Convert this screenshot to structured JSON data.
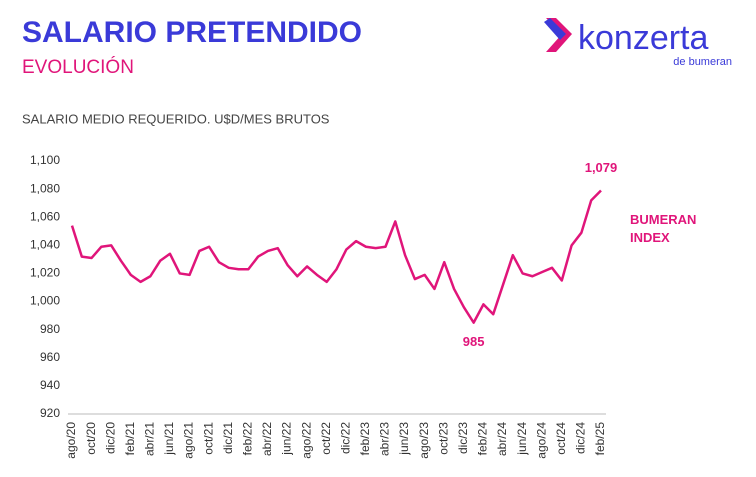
{
  "header": {
    "title": "SALARIO PRETENDIDO",
    "subtitle": "EVOLUCIÓN",
    "logo": {
      "brand": "konzerta",
      "sub": "de bumeran"
    }
  },
  "chart_data": {
    "type": "line",
    "title": "SALARIO MEDIO REQUERIDO. U$D/MES BRUTOS",
    "categories": [
      "ago/20",
      null,
      "oct/20",
      null,
      "dic/20",
      null,
      "feb/21",
      null,
      "abr/21",
      null,
      "jun/21",
      null,
      "ago/21",
      null,
      "oct/21",
      null,
      "dic/21",
      null,
      "feb/22",
      null,
      "abr/22",
      null,
      "jun/22",
      null,
      "ago/22",
      null,
      "oct/22",
      null,
      "dic/22",
      null,
      "feb/23",
      null,
      "abr/23",
      null,
      "jun/23",
      null,
      "ago/23",
      null,
      "oct/23",
      null,
      "dic/23",
      null,
      "feb/24",
      null,
      "abr/24",
      null,
      "jun/24",
      null,
      "ago/24",
      null,
      "oct/24",
      null,
      "dic/24",
      null,
      "feb/25"
    ],
    "series": [
      {
        "name": "BUMERAN INDEX",
        "color": "#e0157a",
        "values": [
          1054,
          1032,
          1031,
          1039,
          1040,
          1029,
          1019,
          1014,
          1018,
          1029,
          1034,
          1020,
          1019,
          1036,
          1039,
          1028,
          1024,
          1023,
          1023,
          1032,
          1036,
          1038,
          1026,
          1018,
          1025,
          1019,
          1014,
          1023,
          1037,
          1043,
          1039,
          1038,
          1039,
          1057,
          1033,
          1016,
          1019,
          1009,
          1028,
          1009,
          996,
          985,
          998,
          991,
          1012,
          1033,
          1020,
          1018,
          1021,
          1024,
          1015,
          1040,
          1049,
          1072,
          1079
        ],
        "value_labels": [
          null,
          null,
          null,
          null,
          null,
          null,
          null,
          null,
          null,
          null,
          null,
          null,
          null,
          null,
          null,
          null,
          null,
          null,
          null,
          null,
          null,
          null,
          null,
          null,
          null,
          null,
          null,
          null,
          null,
          null,
          null,
          null,
          null,
          null,
          null,
          null,
          null,
          null,
          null,
          null,
          null,
          "985",
          null,
          null,
          null,
          null,
          null,
          null,
          null,
          null,
          null,
          null,
          null,
          null,
          "1,079"
        ]
      }
    ],
    "ylim": [
      920,
      1100
    ],
    "yticks": [
      920,
      940,
      960,
      980,
      {
        "value": 1000,
        "label": "1,000"
      },
      {
        "value": 1020,
        "label": "1,020"
      },
      {
        "value": 1040,
        "label": "1,040"
      },
      {
        "value": 1060,
        "label": "1,060"
      },
      {
        "value": 1080,
        "label": "1,080"
      },
      {
        "value": 1100,
        "label": "1,100"
      }
    ],
    "grid": false
  }
}
